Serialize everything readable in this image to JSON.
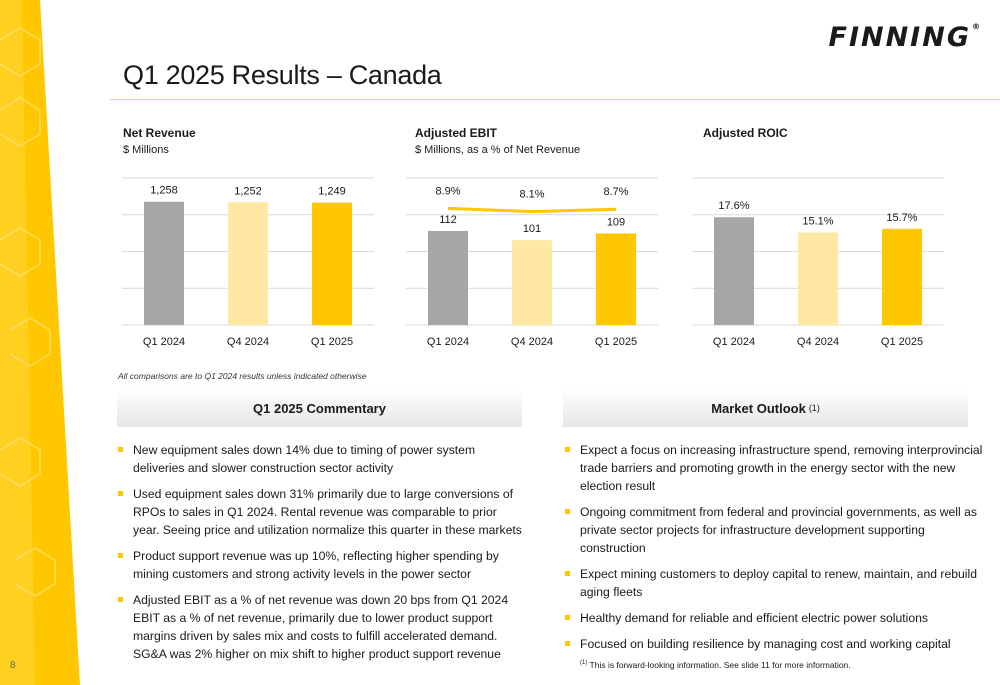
{
  "brand": {
    "logo_text": "FINNING",
    "logo_mark": "®",
    "colors": {
      "yellow": "#ffc700",
      "light_yellow": "#ffe8a3",
      "gray": "#a6a6a6"
    }
  },
  "page": {
    "title": "Q1 2025 Results – Canada",
    "page_number": "8",
    "comparison_note": "All comparisons are to Q1 2024 results unless indicated otherwise"
  },
  "chart_data": [
    {
      "type": "bar",
      "title": "Net Revenue",
      "subtitle": "$ Millions",
      "categories": [
        "Q1 2024",
        "Q4 2024",
        "Q1 2025"
      ],
      "values": [
        1258,
        1252,
        1249
      ],
      "value_labels": [
        "1,258",
        "1,252",
        "1,249"
      ],
      "ylim": [
        0,
        1500
      ],
      "grid": true,
      "bar_colors": [
        "#a6a6a6",
        "#ffe8a3",
        "#ffc700"
      ]
    },
    {
      "type": "bar",
      "title": "Adjusted EBIT",
      "subtitle": "$ Millions, as a % of Net Revenue",
      "categories": [
        "Q1 2024",
        "Q4 2024",
        "Q1 2025"
      ],
      "values": [
        112,
        101,
        109
      ],
      "value_labels": [
        "112",
        "101",
        "109"
      ],
      "ylim": [
        0,
        175
      ],
      "grid": true,
      "bar_colors": [
        "#a6a6a6",
        "#ffe8a3",
        "#ffc700"
      ],
      "line_series": {
        "values": [
          8.9,
          8.1,
          8.7
        ],
        "value_labels": [
          "8.9%",
          "8.1%",
          "8.7%"
        ],
        "color": "#ffc700"
      }
    },
    {
      "type": "bar",
      "title": "Adjusted ROIC",
      "subtitle": "",
      "categories": [
        "Q1 2024",
        "Q4 2024",
        "Q1 2025"
      ],
      "values": [
        17.6,
        15.1,
        15.7
      ],
      "value_labels": [
        "17.6%",
        "15.1%",
        "15.7%"
      ],
      "ylim": [
        0,
        24
      ],
      "grid": true,
      "bar_colors": [
        "#a6a6a6",
        "#ffe8a3",
        "#ffc700"
      ]
    }
  ],
  "commentary": {
    "heading": "Q1 2025 Commentary",
    "bullets": [
      "New equipment sales down 14% due to timing of power system deliveries and slower construction sector activity",
      "Used equipment sales down 31% primarily due to large conversions of RPOs to sales in Q1 2024. Rental revenue was comparable to prior year. Seeing price and utilization normalize this quarter in these markets",
      "Product support revenue was up 10%, reflecting higher spending by mining customers and strong activity levels in the power sector",
      "Adjusted EBIT as a % of net revenue was down 20 bps from Q1 2024 EBIT as a % of net revenue, primarily due to lower product support margins driven by sales mix and costs to fulfill accelerated demand. SG&A was 2% higher on mix shift to higher product support revenue"
    ]
  },
  "outlook": {
    "heading": "Market Outlook",
    "heading_ref": "(1)",
    "bullets": [
      "Expect a focus on increasing infrastructure spend, removing interprovincial trade barriers and promoting growth in the energy sector with the new election result",
      "Ongoing commitment from federal and provincial governments, as well as private sector projects for infrastructure development supporting construction",
      "Expect mining customers to deploy capital to renew, maintain, and rebuild aging fleets",
      "Healthy demand for reliable and efficient electric power solutions",
      "Focused on building resilience by managing cost and working capital"
    ],
    "footnote_ref": "(1)",
    "footnote": " This is forward-looking information. See slide 11 for more information."
  }
}
